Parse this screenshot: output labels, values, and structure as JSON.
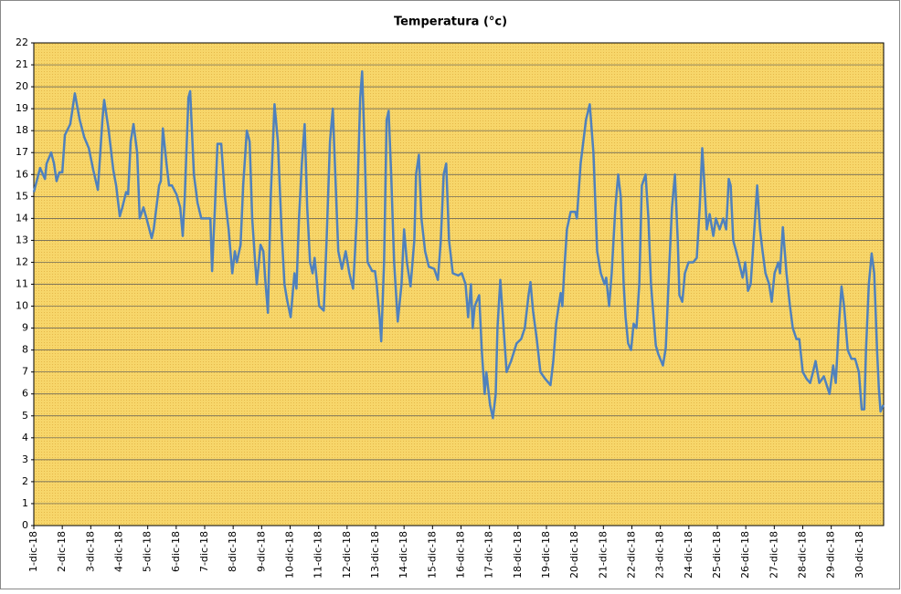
{
  "chart_data": {
    "type": "line",
    "title": "Temperatura (°c)",
    "color": "#4f81bd",
    "grid": true,
    "xlim": [
      1,
      30.84
    ],
    "ylim": [
      0,
      22
    ],
    "yticks": [
      0,
      1,
      2,
      3,
      4,
      5,
      6,
      7,
      8,
      9,
      10,
      11,
      12,
      13,
      14,
      15,
      16,
      17,
      18,
      19,
      20,
      21,
      22
    ],
    "xticks": [
      {
        "value": 1,
        "label": "1-dic-18"
      },
      {
        "value": 2,
        "label": "2-dic-18"
      },
      {
        "value": 3,
        "label": "3-dic-18"
      },
      {
        "value": 4,
        "label": "4-dic-18"
      },
      {
        "value": 5,
        "label": "5-dic-18"
      },
      {
        "value": 6,
        "label": "6-dic-18"
      },
      {
        "value": 7,
        "label": "7-dic-18"
      },
      {
        "value": 8,
        "label": "8-dic-18"
      },
      {
        "value": 9,
        "label": "9-dic-18"
      },
      {
        "value": 10,
        "label": "10-dic-18"
      },
      {
        "value": 11,
        "label": "11-dic-18"
      },
      {
        "value": 12,
        "label": "12-dic-18"
      },
      {
        "value": 13,
        "label": "13-dic-18"
      },
      {
        "value": 14,
        "label": "14-dic-18"
      },
      {
        "value": 15,
        "label": "15-dic-18"
      },
      {
        "value": 16,
        "label": "16-dic-18"
      },
      {
        "value": 17,
        "label": "17-dic-18"
      },
      {
        "value": 18,
        "label": "18-dic-18"
      },
      {
        "value": 19,
        "label": "19-dic-18"
      },
      {
        "value": 20,
        "label": "20-dic-18"
      },
      {
        "value": 21,
        "label": "21-dic-18"
      },
      {
        "value": 22,
        "label": "22-dic-18"
      },
      {
        "value": 23,
        "label": "23-dic-18"
      },
      {
        "value": 24,
        "label": "24-dic-18"
      },
      {
        "value": 25,
        "label": "25-dic-18"
      },
      {
        "value": 26,
        "label": "26-dic-18"
      },
      {
        "value": 27,
        "label": "27-dic-18"
      },
      {
        "value": 28,
        "label": "28-dic-18"
      },
      {
        "value": 29,
        "label": "29-dic-18"
      },
      {
        "value": 30,
        "label": "30-dic-18"
      }
    ],
    "x": [
      1.0,
      1.22,
      1.39,
      1.45,
      1.61,
      1.71,
      1.8,
      1.9,
      2.0,
      2.09,
      2.28,
      2.44,
      2.61,
      2.77,
      2.93,
      3.09,
      3.25,
      3.41,
      3.47,
      3.63,
      3.79,
      3.89,
      4.02,
      4.11,
      4.24,
      4.31,
      4.4,
      4.5,
      4.63,
      4.72,
      4.85,
      4.98,
      5.14,
      5.21,
      5.4,
      5.46,
      5.53,
      5.66,
      5.75,
      5.85,
      6.01,
      6.14,
      6.23,
      6.3,
      6.43,
      6.49,
      6.62,
      6.75,
      6.88,
      7.1,
      7.2,
      7.26,
      7.36,
      7.45,
      7.58,
      7.71,
      7.84,
      7.97,
      8.06,
      8.13,
      8.26,
      8.35,
      8.48,
      8.58,
      8.67,
      8.77,
      8.83,
      8.96,
      9.06,
      9.12,
      9.22,
      9.32,
      9.45,
      9.57,
      9.7,
      9.8,
      9.89,
      10.02,
      10.15,
      10.22,
      10.31,
      10.41,
      10.51,
      10.6,
      10.7,
      10.79,
      10.86,
      11.02,
      11.18,
      11.28,
      11.4,
      11.5,
      11.6,
      11.69,
      11.82,
      11.95,
      12.08,
      12.21,
      12.34,
      12.46,
      12.53,
      12.62,
      12.72,
      12.88,
      12.98,
      13.04,
      13.14,
      13.2,
      13.3,
      13.39,
      13.46,
      13.55,
      13.65,
      13.78,
      13.91,
      14.0,
      14.1,
      14.23,
      14.36,
      14.42,
      14.52,
      14.61,
      14.74,
      14.87,
      15.06,
      15.19,
      15.29,
      15.39,
      15.48,
      15.58,
      15.71,
      15.9,
      16.03,
      16.16,
      16.25,
      16.35,
      16.41,
      16.48,
      16.64,
      16.73,
      16.83,
      16.89,
      17.02,
      17.12,
      17.22,
      17.28,
      17.38,
      17.47,
      17.6,
      17.76,
      17.95,
      18.11,
      18.24,
      18.37,
      18.44,
      18.53,
      18.66,
      18.79,
      18.95,
      19.14,
      19.24,
      19.34,
      19.43,
      19.5,
      19.56,
      19.62,
      19.72,
      19.85,
      20.01,
      20.07,
      20.2,
      20.39,
      20.52,
      20.65,
      20.78,
      20.91,
      21.04,
      21.1,
      21.2,
      21.29,
      21.42,
      21.52,
      21.61,
      21.71,
      21.78,
      21.87,
      21.97,
      22.06,
      22.16,
      22.26,
      22.35,
      22.48,
      22.58,
      22.67,
      22.84,
      22.93,
      23.09,
      23.19,
      23.32,
      23.41,
      23.51,
      23.61,
      23.67,
      23.77,
      23.86,
      23.99,
      24.15,
      24.28,
      24.38,
      24.47,
      24.57,
      24.63,
      24.73,
      24.86,
      24.95,
      25.08,
      25.21,
      25.31,
      25.4,
      25.47,
      25.56,
      25.66,
      25.76,
      25.89,
      25.98,
      26.08,
      26.17,
      26.3,
      26.4,
      26.5,
      26.59,
      26.69,
      26.82,
      26.91,
      27.01,
      27.14,
      27.2,
      27.3,
      27.43,
      27.55,
      27.65,
      27.78,
      27.88,
      28.0,
      28.13,
      28.26,
      28.36,
      28.45,
      28.58,
      28.74,
      28.94,
      29.07,
      29.16,
      29.26,
      29.36,
      29.45,
      29.58,
      29.71,
      29.84,
      29.97,
      30.07,
      30.16,
      30.22,
      30.32,
      30.42,
      30.51,
      30.61,
      30.67,
      30.73,
      30.83
    ],
    "values": [
      15.2,
      16.3,
      15.8,
      16.5,
      17,
      16.5,
      15.7,
      16.1,
      16.1,
      17.8,
      18.3,
      19.7,
      18.5,
      17.7,
      17.2,
      16.2,
      15.3,
      18.5,
      19.4,
      18,
      16.2,
      15.5,
      14.1,
      14.5,
      15.2,
      15.1,
      17.5,
      18.3,
      17,
      14,
      14.5,
      13.9,
      13.1,
      13.5,
      15.5,
      15.7,
      18.1,
      16.5,
      15.5,
      15.5,
      15.1,
      14.5,
      13.2,
      15,
      19.5,
      19.8,
      16,
      14.7,
      14,
      14,
      14,
      11.6,
      14.5,
      17.4,
      17.4,
      15,
      13.5,
      11.5,
      12.5,
      12,
      12.8,
      15.5,
      18,
      17.5,
      14,
      12,
      11,
      12.8,
      12.5,
      11.3,
      9.7,
      15,
      19.2,
      17.5,
      13.5,
      11,
      10.3,
      9.5,
      11.5,
      10.8,
      14,
      16.5,
      18.3,
      14.5,
      12,
      11.5,
      12.2,
      10,
      9.8,
      13,
      17.5,
      19,
      15.5,
      12.5,
      11.7,
      12.5,
      11.5,
      10.8,
      14,
      19.5,
      20.7,
      17,
      12,
      11.6,
      11.6,
      11,
      9.5,
      8.4,
      12,
      18.5,
      18.9,
      16,
      12,
      9.3,
      11,
      13.5,
      12,
      10.9,
      13,
      16,
      16.9,
      14,
      12.5,
      11.8,
      11.7,
      11.2,
      13,
      16,
      16.5,
      13,
      11.5,
      11.4,
      11.5,
      11,
      9.5,
      11,
      9,
      10,
      10.5,
      8,
      6,
      7,
      5.5,
      4.9,
      6,
      9,
      11.2,
      9.5,
      7,
      7.5,
      8.3,
      8.5,
      9,
      10.5,
      11.1,
      9.8,
      8.5,
      7,
      6.7,
      6.4,
      7.5,
      9.2,
      10,
      10.6,
      10,
      11.5,
      13.5,
      14.3,
      14.3,
      14,
      16.5,
      18.5,
      19.2,
      17,
      12.5,
      11.5,
      11,
      11.3,
      10,
      11.5,
      14.5,
      16,
      15,
      11,
      9.5,
      8.3,
      8,
      9.2,
      9,
      11,
      15.5,
      16,
      14,
      11,
      8.2,
      7.8,
      7.3,
      8.1,
      12,
      14.5,
      16,
      13,
      10.5,
      10.2,
      11.5,
      12,
      12,
      12.2,
      14.5,
      17.2,
      15,
      13.5,
      14.2,
      13.2,
      14,
      13.5,
      14,
      13.5,
      15.8,
      15.5,
      13,
      12.5,
      12,
      11.3,
      12,
      10.7,
      11,
      13.5,
      15.5,
      13.5,
      12.5,
      11.5,
      11,
      10.2,
      11.5,
      12,
      11.5,
      13.6,
      11.5,
      10,
      9,
      8.5,
      8.5,
      7,
      6.7,
      6.5,
      7,
      7.5,
      6.5,
      6.8,
      6,
      7.3,
      6.5,
      9,
      10.9,
      10,
      8,
      7.6,
      7.6,
      7,
      5.3,
      5.3,
      8,
      11,
      12.4,
      11.5,
      8,
      6.3,
      5.2,
      5.5
    ]
  }
}
